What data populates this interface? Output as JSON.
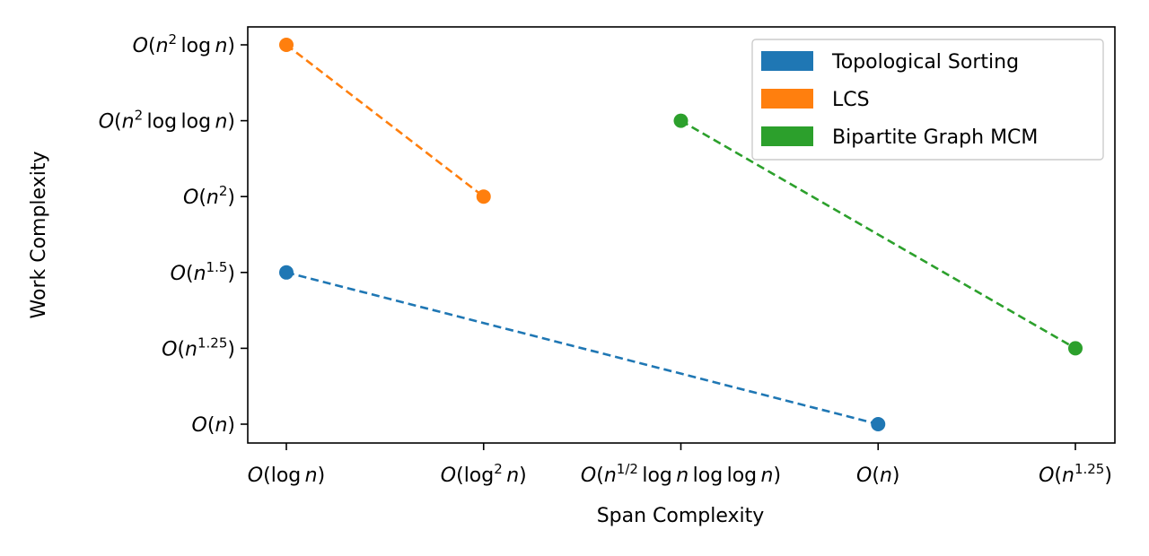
{
  "chart_data": {
    "type": "line",
    "xlabel": "Span Complexity",
    "ylabel": "Work Complexity",
    "x_categories": [
      "O(log n)",
      "O(log^2 n)",
      "O(n^(1/2) log n log log n)",
      "O(n)",
      "O(n^1.25)"
    ],
    "y_categories": [
      "O(n)",
      "O(n^1.25)",
      "O(n^1.5)",
      "O(n^2)",
      "O(n^2 log log n)",
      "O(n^2 log n)"
    ],
    "legend_position": "top-right",
    "grid": false,
    "line_style": "dashed",
    "series": [
      {
        "name": "Topological Sorting",
        "color": "#1f77b4",
        "points": [
          {
            "x": "O(log n)",
            "y": "O(n^1.5)"
          },
          {
            "x": "O(n)",
            "y": "O(n)"
          }
        ]
      },
      {
        "name": "LCS",
        "color": "#ff7f0e",
        "points": [
          {
            "x": "O(log n)",
            "y": "O(n^2 log n)"
          },
          {
            "x": "O(log^2 n)",
            "y": "O(n^2)"
          }
        ]
      },
      {
        "name": "Bipartite Graph MCM",
        "color": "#2ca02c",
        "points": [
          {
            "x": "O(n^(1/2) log n log log n)",
            "y": "O(n^2 log log n)"
          },
          {
            "x": "O(n^1.25)",
            "y": "O(n^1.25)"
          }
        ]
      }
    ]
  }
}
